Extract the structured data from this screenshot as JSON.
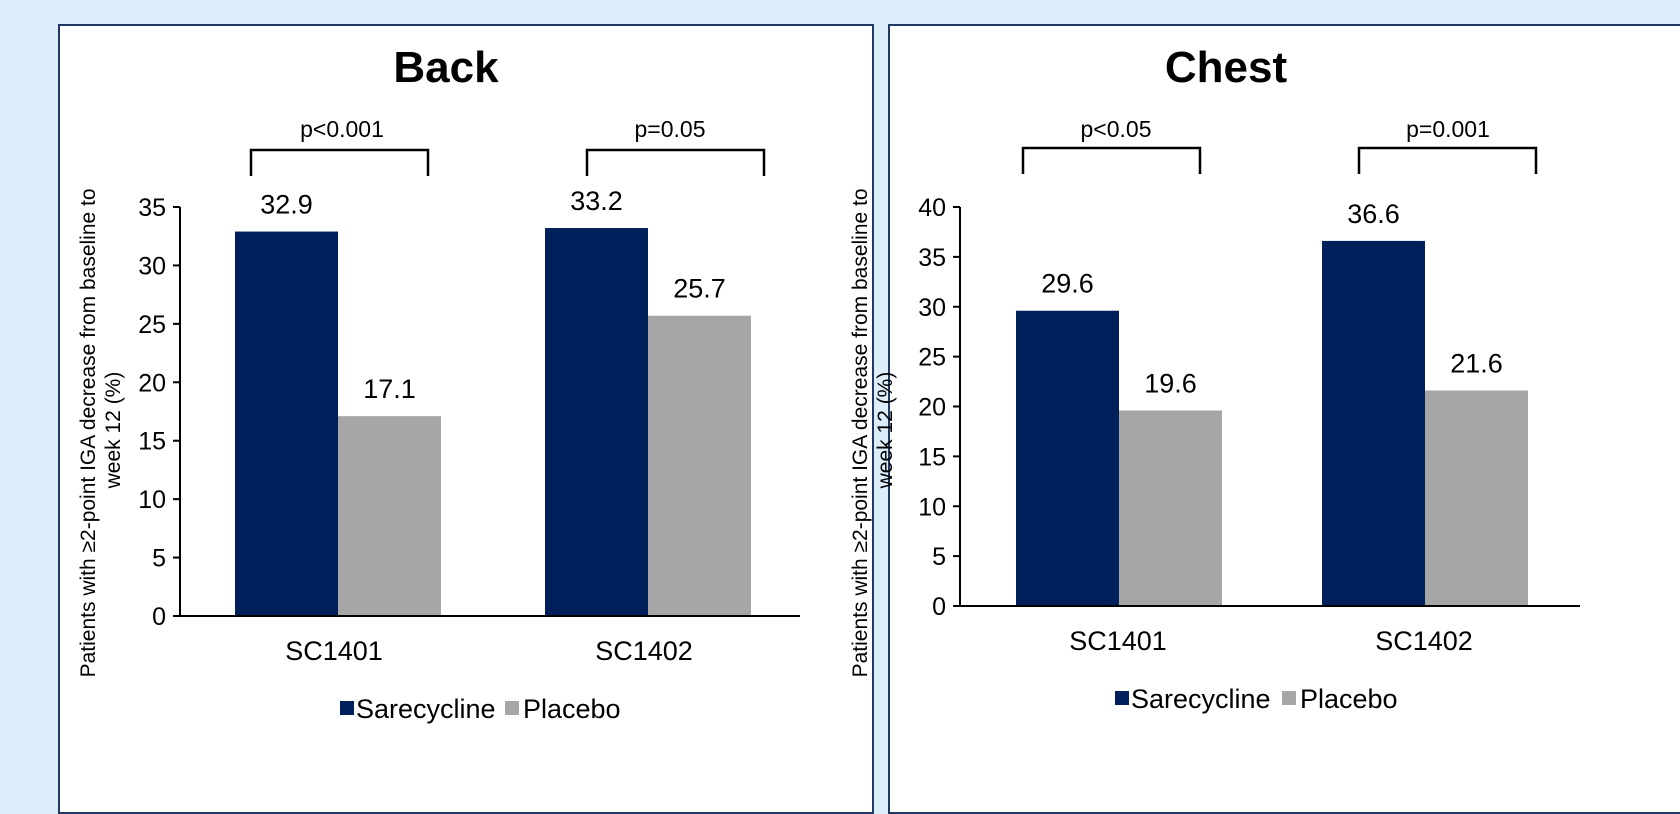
{
  "colors": {
    "sarecycline": "#00205b",
    "placebo": "#a6a6a6",
    "border": "#1f3864"
  },
  "chart_data": [
    {
      "type": "bar",
      "title": "Back",
      "ylabel": "Patients with ≥2-point IGA decrease from baseline to week 12 (%)",
      "ylabel_lines": [
        "Patients with ≥2-point IGA decrease from baseline to",
        "week 12 (%)"
      ],
      "categories": [
        "SC1401",
        "SC1402"
      ],
      "series": [
        {
          "name": "Sarecycline",
          "values": [
            32.9,
            33.2
          ],
          "labels": [
            "32.9",
            "33.2"
          ]
        },
        {
          "name": "Placebo",
          "values": [
            17.1,
            25.7
          ],
          "labels": [
            "17.1",
            "25.7"
          ]
        }
      ],
      "ylim": [
        0,
        35
      ],
      "yticks": [
        0,
        5,
        10,
        15,
        20,
        25,
        30,
        35
      ],
      "annotations": [
        "p<0.001",
        "p=0.05"
      ],
      "grid": false,
      "legend_position": "bottom"
    },
    {
      "type": "bar",
      "title": "Chest",
      "ylabel": "Patients with ≥2-point IGA decrease from baseline to week 12 (%)",
      "ylabel_lines": [
        "Patients with ≥2-point IGA decrease from baseline to",
        "week 12 (%)"
      ],
      "categories": [
        "SC1401",
        "SC1402"
      ],
      "series": [
        {
          "name": "Sarecycline",
          "values": [
            29.6,
            36.6
          ],
          "labels": [
            "29.6",
            "36.6"
          ]
        },
        {
          "name": "Placebo",
          "values": [
            19.6,
            21.6
          ],
          "labels": [
            "19.6",
            "21.6"
          ]
        }
      ],
      "ylim": [
        0,
        40
      ],
      "yticks": [
        0,
        5,
        10,
        15,
        20,
        25,
        30,
        35,
        40
      ],
      "annotations": [
        "p<0.05",
        "p=0.001"
      ],
      "grid": false,
      "legend_position": "bottom"
    }
  ]
}
